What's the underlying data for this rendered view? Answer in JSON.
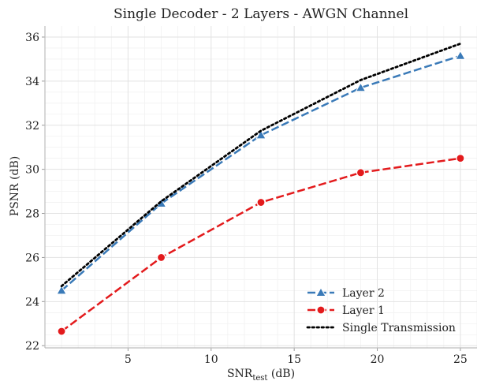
{
  "chart_data": {
    "type": "line",
    "title": "Single Decoder - 2 Layers - AWGN Channel",
    "xlabel": {
      "main": "SNR",
      "subscript": "test",
      "unit": " (dB)"
    },
    "ylabel": "PSNR (dB)",
    "xlim": [
      0,
      26
    ],
    "ylim": [
      21.9,
      36.5
    ],
    "xticks": [
      5,
      10,
      15,
      20,
      25
    ],
    "yticks": [
      22,
      24,
      26,
      28,
      30,
      32,
      34,
      36
    ],
    "grid": true,
    "legend_position": "bottom-right",
    "x": [
      1,
      7,
      13,
      19,
      25
    ],
    "series": [
      {
        "name": "Layer 2",
        "values": [
          24.5,
          28.45,
          31.55,
          33.7,
          35.15
        ],
        "color": "#3a7ab8",
        "dash": "dashed",
        "marker": "triangle"
      },
      {
        "name": "Layer 1",
        "values": [
          22.65,
          26.0,
          28.5,
          29.85,
          30.5
        ],
        "color": "#e31a1c",
        "dash": "dashed",
        "marker": "circle"
      },
      {
        "name": "Single Transmission",
        "values": [
          24.7,
          28.55,
          31.75,
          34.05,
          35.7
        ],
        "color": "#000000",
        "dash": "dotted",
        "marker": "none"
      }
    ]
  }
}
